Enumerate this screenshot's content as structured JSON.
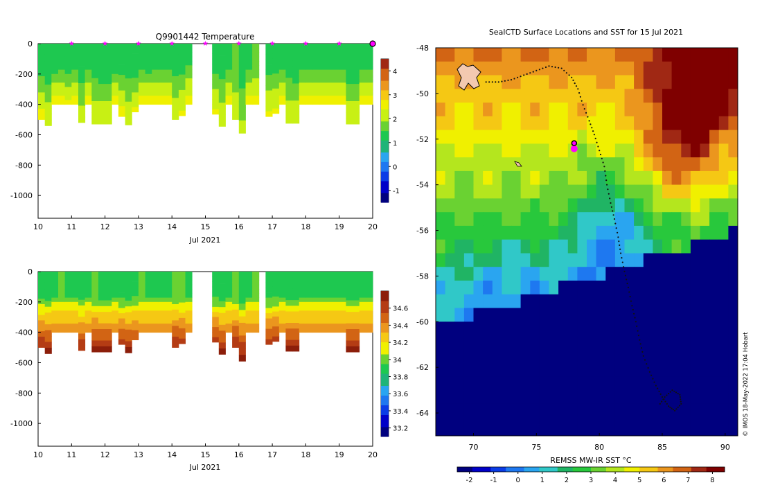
{
  "colors": {
    "sst_map": [
      "#00007f",
      "#0000c8",
      "#0a3ce6",
      "#1e78f0",
      "#2aa5f0",
      "#30c8c8",
      "#20b464",
      "#28c83c",
      "#6ad232",
      "#b4e61e",
      "#f0f000",
      "#f5c814",
      "#eb961e",
      "#d26414",
      "#a02814",
      "#7f0000"
    ],
    "temp_map": [
      "#00007f",
      "#0000c8",
      "#0a3ce6",
      "#1e78f0",
      "#2aa5f0",
      "#20b478",
      "#1ec850",
      "#6ad232",
      "#c8f014",
      "#f0f000",
      "#f5c814",
      "#eb961e",
      "#d26414",
      "#a02814"
    ],
    "sal_map": [
      "#00007f",
      "#0000c8",
      "#0a3ce6",
      "#1e78f0",
      "#2aa5f0",
      "#20b478",
      "#1ec850",
      "#6ad232",
      "#f0f000",
      "#f5c814",
      "#eb961e",
      "#d26414",
      "#b43c14",
      "#8c1e0a"
    ],
    "marker": "#ff00ff",
    "track": "#111111"
  },
  "chart_data": [
    {
      "type": "heatmap",
      "title": "Q9901442  Temperature",
      "xlabel": "Jul 2021",
      "ylabel": "",
      "xlim": [
        10,
        20
      ],
      "ylim": [
        -1150,
        0
      ],
      "x_ticks": [
        "10",
        "11",
        "12",
        "13",
        "14",
        "15",
        "16",
        "17",
        "18",
        "19",
        "20"
      ],
      "y_ticks": [
        "0",
        "-200",
        "-400",
        "-600",
        "-800",
        "-1000"
      ],
      "colorbar": {
        "range": [
          -1.5,
          4.5
        ],
        "ticks": [
          "-1",
          "0",
          "1",
          "2",
          "3",
          "4"
        ]
      },
      "markers_x": [
        11,
        12,
        13,
        14,
        15,
        16,
        17,
        18,
        19
      ],
      "last_marker_x": 20,
      "profiles": {
        "day": [
          10.0,
          10.2,
          10.4,
          10.6,
          10.8,
          11.0,
          11.2,
          11.4,
          11.6,
          11.8,
          12.0,
          12.2,
          12.4,
          12.6,
          12.8,
          13.0,
          13.2,
          13.4,
          13.6,
          13.8,
          14.0,
          14.2,
          14.4,
          14.6,
          14.8,
          15.0,
          15.2,
          15.4,
          15.6,
          15.8,
          16.0,
          16.2,
          16.4,
          16.6,
          16.8,
          17.0,
          17.2,
          17.4,
          17.6,
          17.8,
          18.0,
          18.2,
          18.4,
          18.6,
          18.8,
          19.0,
          19.2,
          19.4,
          19.6,
          19.8
        ],
        "max_depth": [
          500,
          540,
          400,
          400,
          400,
          400,
          520,
          400,
          530,
          530,
          530,
          400,
          480,
          535,
          450,
          400,
          400,
          400,
          400,
          400,
          500,
          475,
          400,
          0,
          0,
          0,
          465,
          545,
          400,
          500,
          590,
          400,
          400,
          0,
          480,
          460,
          400,
          525,
          525,
          400,
          400,
          400,
          400,
          400,
          400,
          400,
          530,
          530,
          400,
          400
        ],
        "v_surface": [
          1.2,
          1.2,
          1.1,
          1.3,
          1.2,
          1.2,
          1.1,
          1.2,
          1.3,
          1.2,
          1.2,
          1.1,
          1.2,
          1.3,
          1.2,
          1.2,
          1.1,
          1.3,
          1.2,
          1.2,
          1.3,
          1.4,
          1.4,
          1.5,
          1.5,
          1.5,
          1.3,
          1.4,
          1.3,
          1.5,
          1.2,
          1.3,
          1.5,
          1.4,
          1.4,
          1.3,
          1.2,
          1.3,
          1.2,
          1.2,
          1.2,
          1.3,
          1.2,
          1.2,
          1.2,
          1.3,
          1.2,
          1.2,
          1.3,
          1.2
        ],
        "v_bottom": [
          2.5,
          2.3,
          2.6,
          2.5,
          2.4,
          2.5,
          2.2,
          2.5,
          2.3,
          2.3,
          2.3,
          2.6,
          2.5,
          2.2,
          2.4,
          2.5,
          2.6,
          2.5,
          2.5,
          2.5,
          2.3,
          2.4,
          2.5,
          0,
          0,
          0,
          2.4,
          2.2,
          2.5,
          2.3,
          2.1,
          2.5,
          2.5,
          0,
          2.4,
          2.4,
          2.5,
          2.3,
          2.3,
          2.5,
          2.5,
          2.5,
          2.5,
          2.5,
          2.5,
          2.5,
          2.3,
          2.3,
          2.5,
          2.5
        ]
      }
    },
    {
      "type": "heatmap",
      "title": "",
      "xlabel": "Jul 2021",
      "ylabel": "",
      "xlim": [
        10,
        20
      ],
      "ylim": [
        -1150,
        0
      ],
      "x_ticks": [
        "10",
        "11",
        "12",
        "13",
        "14",
        "15",
        "16",
        "17",
        "18",
        "19",
        "20"
      ],
      "y_ticks": [
        "0",
        "-200",
        "-400",
        "-600",
        "-800",
        "-1000"
      ],
      "colorbar": {
        "range": [
          33.1,
          34.8
        ],
        "ticks": [
          "33.2",
          "33.4",
          "33.6",
          "33.8",
          "34",
          "34.2",
          "34.4",
          "34.6"
        ]
      },
      "profiles": {
        "v_surface": [
          33.9,
          33.9,
          33.9,
          33.95,
          33.9,
          33.9,
          33.9,
          33.9,
          33.95,
          33.9,
          33.9,
          33.9,
          33.9,
          33.9,
          33.9,
          33.95,
          33.9,
          33.9,
          33.9,
          33.9,
          33.95,
          33.95,
          33.9,
          33.9,
          33.9,
          33.9,
          33.9,
          33.9,
          33.9,
          33.95,
          33.9,
          33.9,
          33.95,
          33.95,
          33.9,
          33.9,
          33.9,
          33.9,
          33.9,
          33.9,
          33.9,
          33.9,
          33.9,
          33.9,
          33.9,
          33.9,
          33.9,
          33.9,
          33.9,
          33.9
        ],
        "v_bottom": [
          34.65,
          34.7,
          34.4,
          34.4,
          34.4,
          34.4,
          34.65,
          34.4,
          34.7,
          34.7,
          34.7,
          34.4,
          34.6,
          34.7,
          34.55,
          34.4,
          34.4,
          34.4,
          34.4,
          34.4,
          34.65,
          34.6,
          34.4,
          0,
          0,
          0,
          34.6,
          34.7,
          34.4,
          34.65,
          34.75,
          34.4,
          34.4,
          0,
          34.6,
          34.6,
          34.4,
          34.7,
          34.7,
          34.4,
          34.4,
          34.4,
          34.4,
          34.4,
          34.4,
          34.4,
          34.7,
          34.7,
          34.4,
          34.4
        ]
      }
    },
    {
      "type": "heatmap",
      "title": "SealCTD Surface Locations and SST for 15 Jul 2021",
      "xlabel": "",
      "ylabel": "",
      "xlim": [
        67,
        91
      ],
      "ylim": [
        -65,
        -48
      ],
      "x_ticks": [
        "70",
        "75",
        "80",
        "85",
        "90"
      ],
      "y_ticks": [
        "-48",
        "-50",
        "-52",
        "-54",
        "-56",
        "-58",
        "-60",
        "-62",
        "-64"
      ],
      "colorbar": {
        "label": "REMSS MW-IR SST °C",
        "range": [
          -2.5,
          8.5
        ],
        "ticks": [
          "-2",
          "-1",
          "0",
          "1",
          "2",
          "3",
          "4",
          "5",
          "6",
          "7",
          "8"
        ]
      },
      "highlight_location": {
        "lon": 78.0,
        "lat": -52.3
      },
      "track": {
        "lon": [
          71.0,
          72.0,
          73.0,
          74.0,
          75.0,
          76.0,
          77.0,
          77.8,
          78.3,
          78.7,
          79.2,
          79.6,
          80.0,
          80.4,
          80.6,
          80.9,
          81.2,
          81.5,
          81.7,
          82.0,
          82.3,
          82.6,
          82.9,
          83.2,
          83.5,
          84.0,
          84.5,
          85.0,
          85.5,
          86.0,
          86.5,
          86.4,
          85.8,
          85.2,
          84.7
        ],
        "lat": [
          -49.5,
          -49.5,
          -49.4,
          -49.2,
          -49.0,
          -48.8,
          -48.9,
          -49.3,
          -49.8,
          -50.5,
          -51.2,
          -51.8,
          -52.5,
          -53.2,
          -54.0,
          -54.8,
          -55.5,
          -56.3,
          -57.0,
          -57.8,
          -58.5,
          -59.3,
          -60.0,
          -60.8,
          -61.5,
          -62.2,
          -62.8,
          -63.3,
          -63.7,
          -63.9,
          -63.6,
          -63.2,
          -63.0,
          -63.3,
          -63.7
        ]
      }
    }
  ],
  "footer": {
    "stamp": "© IMOS 18-May-2022 17:04 Hobart"
  }
}
